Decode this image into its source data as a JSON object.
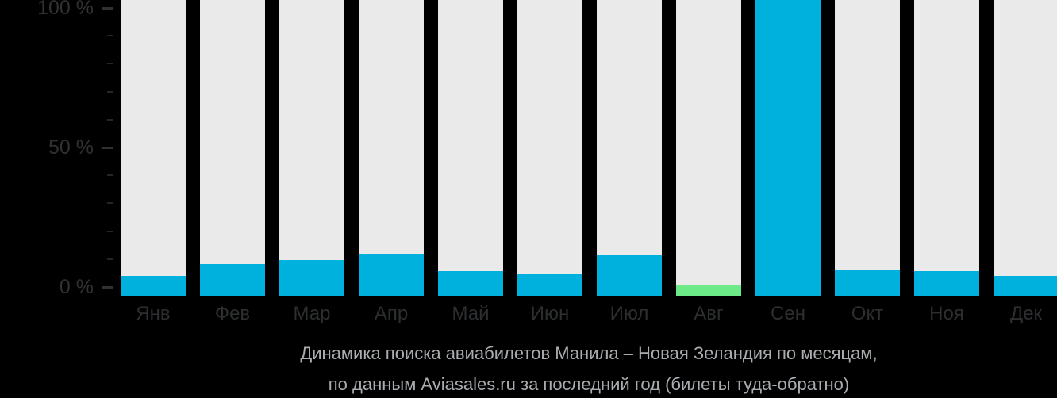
{
  "chart_data": {
    "type": "bar",
    "title_lines": [
      "Динамика поиска авиабилетов Манила – Новая Зеландия по месяцам,",
      "по данным Aviasales.ru за последний год (билеты туда-обратно)"
    ],
    "categories": [
      "Янв",
      "Фев",
      "Мар",
      "Апр",
      "Май",
      "Июн",
      "Июл",
      "Авг",
      "Сен",
      "Окт",
      "Ноя",
      "Дек"
    ],
    "values": [
      6.7,
      10.7,
      12.1,
      13.9,
      8.2,
      7.3,
      13.6,
      3.8,
      100,
      8.5,
      8.3,
      6.7
    ],
    "bar_colors": [
      "#00b0dd",
      "#00b0dd",
      "#00b0dd",
      "#00b0dd",
      "#00b0dd",
      "#00b0dd",
      "#00b0dd",
      "#6cea87",
      "#00b0dd",
      "#00b0dd",
      "#00b0dd",
      "#00b0dd"
    ],
    "track_color": "#eaeaea",
    "ylim": [
      0,
      100
    ],
    "yticks_major": [
      {
        "value": 100,
        "label": "100 %"
      },
      {
        "value": 50,
        "label": "50 %"
      },
      {
        "value": 0,
        "label": "0 %"
      }
    ],
    "ytick_minor_step": 10,
    "grid": false,
    "legend": false,
    "highlighted_category": "Авг",
    "max_category": "Сен"
  },
  "colors": {
    "background": "#000000",
    "bar_blue": "#00b0dd",
    "bar_green": "#6cea87",
    "bar_track": "#eaeaea",
    "axis_text": "#2f3133",
    "minor_tick": "#242627",
    "caption_text": "#a9adb0"
  }
}
